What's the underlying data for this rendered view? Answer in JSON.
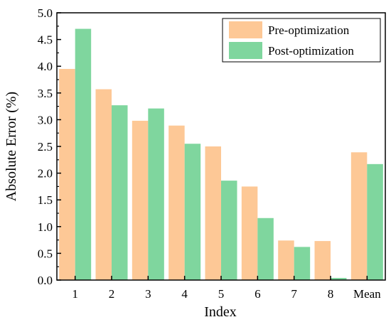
{
  "chart_data": {
    "type": "bar",
    "categories": [
      "1",
      "2",
      "3",
      "4",
      "5",
      "6",
      "7",
      "8",
      "Mean"
    ],
    "series": [
      {
        "name": "Pre-optimization",
        "color": "#FDC896",
        "values": [
          3.95,
          3.57,
          2.98,
          2.89,
          2.5,
          1.75,
          0.74,
          0.73,
          2.39
        ]
      },
      {
        "name": "Post-optimization",
        "color": "#7FD69E",
        "values": [
          4.7,
          3.27,
          3.21,
          2.55,
          1.86,
          1.16,
          0.62,
          0.04,
          2.17
        ]
      }
    ],
    "xlabel": "Index",
    "ylabel": "Absolute Error (%)",
    "ylim": [
      0,
      5.0
    ],
    "yticks": [
      "0.0",
      "0.5",
      "1.0",
      "1.5",
      "2.0",
      "2.5",
      "3.0",
      "3.5",
      "4.0",
      "4.5",
      "5.0"
    ],
    "grid": false,
    "legend_position": "top-right"
  }
}
